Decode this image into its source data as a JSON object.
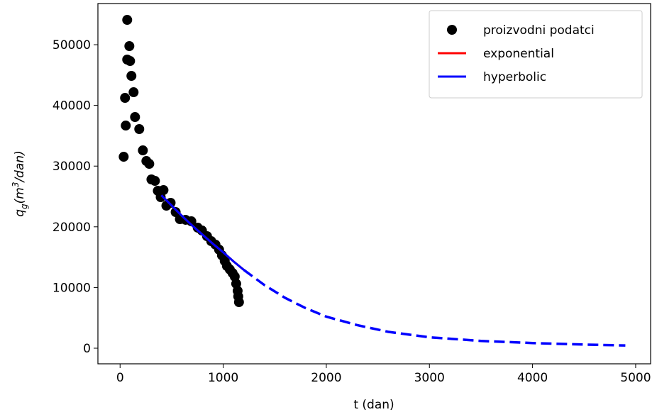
{
  "chart_data": {
    "type": "scatter",
    "xlabel": "t (dan)",
    "ylabel": {
      "base": "q",
      "sub": "g",
      "open": "(m",
      "sup": "3",
      "close": "/dan)"
    },
    "xlim": [
      -215,
      5145
    ],
    "ylim": [
      -2570,
      56780
    ],
    "xticks": [
      0,
      1000,
      2000,
      3000,
      4000,
      5000
    ],
    "yticks": [
      0,
      10000,
      20000,
      30000,
      40000,
      50000
    ],
    "legend": "upper right",
    "series": [
      {
        "name": "proizvodni podatci",
        "kind": "points",
        "color": "#000000",
        "x": [
          35,
          48,
          55,
          69,
          69,
          90,
          97,
          110,
          131,
          145,
          186,
          221,
          255,
          283,
          304,
          338,
          366,
          394,
          421,
          449,
          490,
          539,
          580,
          635,
          691,
          753,
          794,
          843,
          884,
          925,
          960,
          988,
          1015,
          1036,
          1064,
          1091,
          1112,
          1126,
          1140,
          1146,
          1153
        ],
        "values": [
          31540,
          41240,
          36680,
          47550,
          54090,
          49770,
          47310,
          44860,
          42170,
          38080,
          36100,
          32590,
          30840,
          30370,
          27800,
          27570,
          25930,
          24880,
          26050,
          23480,
          23950,
          22430,
          21260,
          21150,
          20910,
          19860,
          19390,
          18460,
          17640,
          17060,
          16240,
          15300,
          14370,
          13550,
          12970,
          12380,
          11800,
          10630,
          9460,
          8530,
          7590
        ]
      },
      {
        "name": "exponential",
        "kind": "line",
        "color": "#ff0000",
        "x": [
          400,
          500,
          600,
          700,
          800,
          900,
          1000,
          1100,
          1200
        ],
        "values": [
          25200,
          23500,
          21800,
          20200,
          18700,
          17200,
          15800,
          14300,
          12900
        ]
      },
      {
        "name": "hyperbolic",
        "kind": "line",
        "color": "#0000ff",
        "x": [
          400,
          500,
          600,
          700,
          800,
          900,
          1000,
          1100,
          1200
        ],
        "values": [
          25200,
          23500,
          21800,
          20200,
          18700,
          17200,
          15800,
          14300,
          12900
        ]
      }
    ],
    "forecast": {
      "color": "#0000ff",
      "dashed": true,
      "x": [
        1200,
        1400,
        1600,
        1800,
        2000,
        2300,
        2600,
        3000,
        3500,
        4000,
        4500,
        4900
      ],
      "values": [
        12900,
        10400,
        8300,
        6600,
        5200,
        3800,
        2700,
        1800,
        1200,
        850,
        600,
        450
      ]
    }
  }
}
